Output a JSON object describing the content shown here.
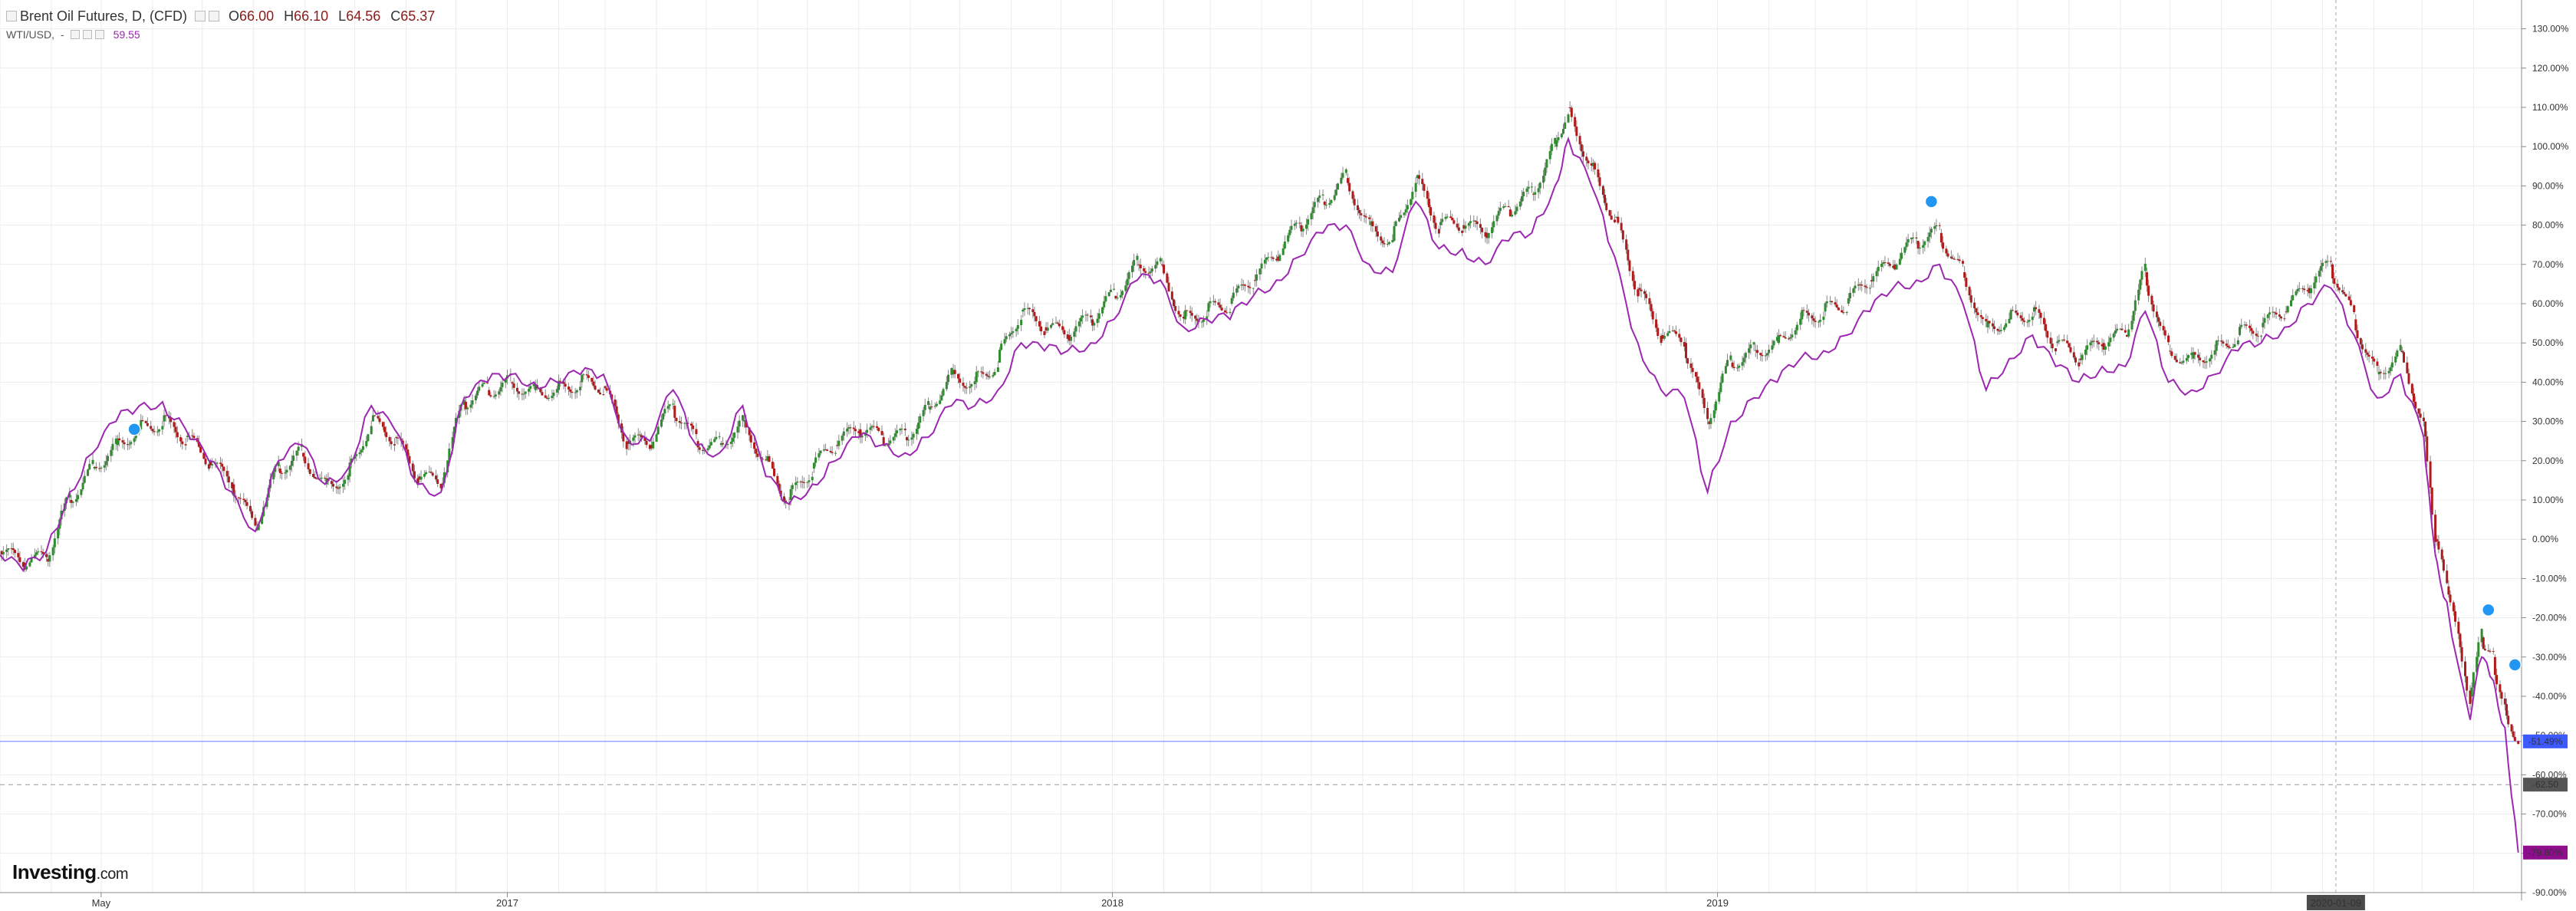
{
  "legend": {
    "main_title": "Brent Oil Futures, D, (CFD)",
    "open_label": "O",
    "open": "66.00",
    "high_label": "H",
    "high": "66.10",
    "low_label": "L",
    "low": "64.56",
    "close_label": "C",
    "close": "65.37",
    "compare_name": "WTI/USD,",
    "compare_dash": "-",
    "compare_value": "59.55"
  },
  "logo": {
    "brand": "Investing",
    "suffix": ".com"
  },
  "colors": {
    "up": "#2e8b2e",
    "down": "#b11a1a",
    "compare": "#9c27b0",
    "grid": "#ececec",
    "hline_blue": "#3d5afe",
    "badge_purple": "#8e0e8e",
    "badge_gray": "#555555"
  },
  "chart_data": {
    "type": "line",
    "title": "Brent Oil Futures, D, (CFD)",
    "y_unit": "%",
    "ylim": [
      -90,
      135
    ],
    "y_ticks": [
      "130.00%",
      "120.00%",
      "110.00%",
      "100.00%",
      "90.00%",
      "80.00%",
      "70.00%",
      "60.00%",
      "50.00%",
      "40.00%",
      "30.00%",
      "20.00%",
      "10.00%",
      "0.00%",
      "-10.00%",
      "-20.00%",
      "-30.00%",
      "-40.00%",
      "-50.00%",
      "-60.00%",
      "-70.00%",
      "-80.00%",
      "-90.00%"
    ],
    "x_ticks": [
      "May",
      "2017",
      "2018",
      "2019"
    ],
    "x_range": [
      "2016-03-01",
      "2020-04-30"
    ],
    "crosshair_date": "2020-01-09",
    "badges": [
      {
        "label": "-51.49%",
        "value": -51.49,
        "color": "blue"
      },
      {
        "label": "-62.50",
        "value": -62.5,
        "color": "gray"
      },
      {
        "label": "-79.80%",
        "value": -79.8,
        "color": "purple"
      }
    ],
    "series": [
      {
        "name": "Brent Oil Futures, D, (CFD)",
        "style": "candlestick",
        "points": [
          [
            "2016-03-01",
            -3
          ],
          [
            "2016-03-15",
            -6
          ],
          [
            "2016-03-29",
            -5
          ],
          [
            "2016-04-12",
            10
          ],
          [
            "2016-04-26",
            18
          ],
          [
            "2016-05-10",
            24
          ],
          [
            "2016-05-24",
            28
          ],
          [
            "2016-06-07",
            30
          ],
          [
            "2016-06-21",
            26
          ],
          [
            "2016-07-05",
            20
          ],
          [
            "2016-07-19",
            14
          ],
          [
            "2016-08-02",
            3
          ],
          [
            "2016-08-16",
            18
          ],
          [
            "2016-08-30",
            22
          ],
          [
            "2016-09-13",
            14
          ],
          [
            "2016-09-27",
            16
          ],
          [
            "2016-10-11",
            30
          ],
          [
            "2016-10-25",
            26
          ],
          [
            "2016-11-08",
            16
          ],
          [
            "2016-11-22",
            14
          ],
          [
            "2016-12-06",
            35
          ],
          [
            "2016-12-20",
            38
          ],
          [
            "2017-01-03",
            40
          ],
          [
            "2017-01-17",
            38
          ],
          [
            "2017-01-31",
            38
          ],
          [
            "2017-02-14",
            40
          ],
          [
            "2017-02-28",
            39
          ],
          [
            "2017-03-14",
            25
          ],
          [
            "2017-03-28",
            24
          ],
          [
            "2017-04-11",
            34
          ],
          [
            "2017-04-25",
            25
          ],
          [
            "2017-05-09",
            24
          ],
          [
            "2017-05-23",
            30
          ],
          [
            "2017-06-06",
            20
          ],
          [
            "2017-06-20",
            10
          ],
          [
            "2017-07-04",
            18
          ],
          [
            "2017-07-18",
            24
          ],
          [
            "2017-08-01",
            28
          ],
          [
            "2017-08-15",
            26
          ],
          [
            "2017-08-29",
            26
          ],
          [
            "2017-09-12",
            33
          ],
          [
            "2017-09-26",
            42
          ],
          [
            "2017-10-10",
            40
          ],
          [
            "2017-10-24",
            45
          ],
          [
            "2017-11-07",
            58
          ],
          [
            "2017-11-21",
            54
          ],
          [
            "2017-12-05",
            52
          ],
          [
            "2017-12-19",
            56
          ],
          [
            "2018-01-02",
            62
          ],
          [
            "2018-01-16",
            70
          ],
          [
            "2018-01-30",
            70
          ],
          [
            "2018-02-13",
            56
          ],
          [
            "2018-02-27",
            58
          ],
          [
            "2018-03-13",
            60
          ],
          [
            "2018-03-27",
            66
          ],
          [
            "2018-04-10",
            72
          ],
          [
            "2018-04-24",
            80
          ],
          [
            "2018-05-08",
            86
          ],
          [
            "2018-05-22",
            92
          ],
          [
            "2018-06-05",
            80
          ],
          [
            "2018-06-19",
            76
          ],
          [
            "2018-07-03",
            92
          ],
          [
            "2018-07-17",
            80
          ],
          [
            "2018-07-31",
            80
          ],
          [
            "2018-08-14",
            78
          ],
          [
            "2018-08-28",
            84
          ],
          [
            "2018-09-11",
            88
          ],
          [
            "2018-09-25",
            100
          ],
          [
            "2018-10-03",
            110
          ],
          [
            "2018-10-17",
            95
          ],
          [
            "2018-10-31",
            82
          ],
          [
            "2018-11-14",
            64
          ],
          [
            "2018-11-28",
            52
          ],
          [
            "2018-12-12",
            50
          ],
          [
            "2018-12-26",
            30
          ],
          [
            "2019-01-09",
            45
          ],
          [
            "2019-01-23",
            48
          ],
          [
            "2019-02-06",
            50
          ],
          [
            "2019-02-20",
            56
          ],
          [
            "2019-03-06",
            58
          ],
          [
            "2019-03-20",
            60
          ],
          [
            "2019-04-03",
            66
          ],
          [
            "2019-04-17",
            70
          ],
          [
            "2019-05-01",
            76
          ],
          [
            "2019-05-15",
            78
          ],
          [
            "2019-05-29",
            68
          ],
          [
            "2019-06-12",
            54
          ],
          [
            "2019-06-26",
            56
          ],
          [
            "2019-07-10",
            58
          ],
          [
            "2019-07-24",
            50
          ],
          [
            "2019-08-07",
            46
          ],
          [
            "2019-08-21",
            50
          ],
          [
            "2019-09-04",
            52
          ],
          [
            "2019-09-16",
            68
          ],
          [
            "2019-09-30",
            48
          ],
          [
            "2019-10-14",
            46
          ],
          [
            "2019-10-28",
            48
          ],
          [
            "2019-11-11",
            52
          ],
          [
            "2019-11-25",
            54
          ],
          [
            "2019-12-09",
            58
          ],
          [
            "2019-12-23",
            64
          ],
          [
            "2020-01-06",
            70
          ],
          [
            "2020-01-20",
            56
          ],
          [
            "2020-02-03",
            42
          ],
          [
            "2020-02-17",
            48
          ],
          [
            "2020-03-02",
            30
          ],
          [
            "2020-03-09",
            0
          ],
          [
            "2020-03-16",
            -12
          ],
          [
            "2020-03-30",
            -40
          ],
          [
            "2020-04-06",
            -25
          ],
          [
            "2020-04-13",
            -30
          ],
          [
            "2020-04-20",
            -42
          ],
          [
            "2020-04-28",
            -51.49
          ]
        ]
      },
      {
        "name": "WTI/USD",
        "style": "line",
        "points": [
          [
            "2016-03-01",
            -4
          ],
          [
            "2016-03-15",
            -8
          ],
          [
            "2016-03-29",
            -3
          ],
          [
            "2016-04-12",
            12
          ],
          [
            "2016-04-26",
            22
          ],
          [
            "2016-05-10",
            30
          ],
          [
            "2016-05-24",
            34
          ],
          [
            "2016-06-07",
            35
          ],
          [
            "2016-06-21",
            28
          ],
          [
            "2016-07-05",
            20
          ],
          [
            "2016-07-19",
            12
          ],
          [
            "2016-08-02",
            2
          ],
          [
            "2016-08-16",
            20
          ],
          [
            "2016-08-30",
            24
          ],
          [
            "2016-09-13",
            14
          ],
          [
            "2016-09-27",
            18
          ],
          [
            "2016-10-11",
            34
          ],
          [
            "2016-10-25",
            28
          ],
          [
            "2016-11-08",
            14
          ],
          [
            "2016-11-22",
            12
          ],
          [
            "2016-12-06",
            36
          ],
          [
            "2016-12-20",
            40
          ],
          [
            "2017-01-03",
            42
          ],
          [
            "2017-01-17",
            40
          ],
          [
            "2017-01-31",
            40
          ],
          [
            "2017-02-14",
            42
          ],
          [
            "2017-02-28",
            42
          ],
          [
            "2017-03-14",
            26
          ],
          [
            "2017-03-28",
            25
          ],
          [
            "2017-04-11",
            38
          ],
          [
            "2017-04-25",
            24
          ],
          [
            "2017-05-09",
            22
          ],
          [
            "2017-05-23",
            34
          ],
          [
            "2017-06-06",
            16
          ],
          [
            "2017-06-20",
            9
          ],
          [
            "2017-07-04",
            14
          ],
          [
            "2017-07-18",
            20
          ],
          [
            "2017-08-01",
            26
          ],
          [
            "2017-08-15",
            24
          ],
          [
            "2017-08-29",
            22
          ],
          [
            "2017-09-12",
            26
          ],
          [
            "2017-09-26",
            34
          ],
          [
            "2017-10-10",
            34
          ],
          [
            "2017-10-24",
            38
          ],
          [
            "2017-11-07",
            50
          ],
          [
            "2017-11-21",
            48
          ],
          [
            "2017-12-05",
            48
          ],
          [
            "2017-12-19",
            50
          ],
          [
            "2018-01-02",
            56
          ],
          [
            "2018-01-16",
            66
          ],
          [
            "2018-01-30",
            66
          ],
          [
            "2018-02-13",
            54
          ],
          [
            "2018-02-27",
            56
          ],
          [
            "2018-03-13",
            56
          ],
          [
            "2018-03-27",
            62
          ],
          [
            "2018-04-10",
            66
          ],
          [
            "2018-04-24",
            72
          ],
          [
            "2018-05-08",
            78
          ],
          [
            "2018-05-22",
            80
          ],
          [
            "2018-06-05",
            70
          ],
          [
            "2018-06-19",
            68
          ],
          [
            "2018-07-03",
            86
          ],
          [
            "2018-07-17",
            74
          ],
          [
            "2018-07-31",
            74
          ],
          [
            "2018-08-14",
            70
          ],
          [
            "2018-08-28",
            76
          ],
          [
            "2018-09-11",
            78
          ],
          [
            "2018-09-25",
            90
          ],
          [
            "2018-10-03",
            102
          ],
          [
            "2018-10-17",
            90
          ],
          [
            "2018-10-31",
            72
          ],
          [
            "2018-11-14",
            50
          ],
          [
            "2018-11-28",
            38
          ],
          [
            "2018-12-12",
            36
          ],
          [
            "2018-12-26",
            12
          ],
          [
            "2019-01-09",
            30
          ],
          [
            "2019-01-23",
            36
          ],
          [
            "2019-02-06",
            40
          ],
          [
            "2019-02-20",
            46
          ],
          [
            "2019-03-06",
            48
          ],
          [
            "2019-03-20",
            52
          ],
          [
            "2019-04-03",
            58
          ],
          [
            "2019-04-17",
            64
          ],
          [
            "2019-05-01",
            66
          ],
          [
            "2019-05-15",
            70
          ],
          [
            "2019-05-29",
            60
          ],
          [
            "2019-06-12",
            38
          ],
          [
            "2019-06-26",
            46
          ],
          [
            "2019-07-10",
            52
          ],
          [
            "2019-07-24",
            44
          ],
          [
            "2019-08-07",
            40
          ],
          [
            "2019-08-21",
            44
          ],
          [
            "2019-09-04",
            44
          ],
          [
            "2019-09-16",
            58
          ],
          [
            "2019-09-30",
            40
          ],
          [
            "2019-10-14",
            38
          ],
          [
            "2019-10-28",
            42
          ],
          [
            "2019-11-11",
            48
          ],
          [
            "2019-11-25",
            50
          ],
          [
            "2019-12-09",
            54
          ],
          [
            "2019-12-23",
            60
          ],
          [
            "2020-01-06",
            64
          ],
          [
            "2020-01-20",
            52
          ],
          [
            "2020-02-03",
            36
          ],
          [
            "2020-02-17",
            42
          ],
          [
            "2020-03-02",
            26
          ],
          [
            "2020-03-09",
            -4
          ],
          [
            "2020-03-16",
            -16
          ],
          [
            "2020-03-30",
            -46
          ],
          [
            "2020-04-06",
            -30
          ],
          [
            "2020-04-13",
            -36
          ],
          [
            "2020-04-20",
            -48
          ],
          [
            "2020-04-28",
            -79.8
          ]
        ]
      }
    ]
  }
}
